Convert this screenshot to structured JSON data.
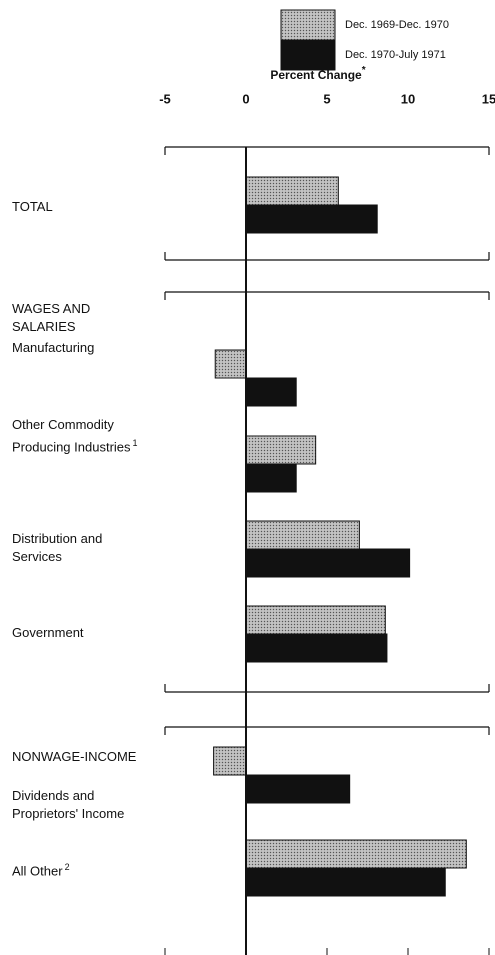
{
  "chart_data": {
    "type": "bar",
    "orientation": "horizontal",
    "title": "Percent Change",
    "title_note": "*",
    "xlim": [
      -5,
      15
    ],
    "xticks": [
      -5,
      0,
      5,
      10,
      15
    ],
    "sections": [
      {
        "categories": [
          {
            "label": "TOTAL"
          }
        ]
      },
      {
        "title": "WAGES AND SALARIES",
        "categories": [
          {
            "label": "Manufacturing"
          },
          {
            "label": "Other Commodity Producing Industries",
            "note": "1"
          },
          {
            "label": "Distribution and Services"
          },
          {
            "label": "Government"
          }
        ]
      },
      {
        "title": "NONWAGE-INCOME",
        "categories": [
          {
            "label": "Dividends and Proprietors' Income"
          },
          {
            "label": "All Other",
            "note": "2"
          }
        ]
      }
    ],
    "series": [
      {
        "name": "Dec. 1969-Dec. 1970",
        "color": "#b5b5b5",
        "pattern": "stipple",
        "values": [
          5.7,
          -1.9,
          4.3,
          7.0,
          8.6,
          -2.0,
          13.6
        ]
      },
      {
        "name": "Dec. 1970-July 1971",
        "color": "#111111",
        "values": [
          8.1,
          3.1,
          3.1,
          10.1,
          8.7,
          6.4,
          12.3
        ]
      }
    ]
  }
}
